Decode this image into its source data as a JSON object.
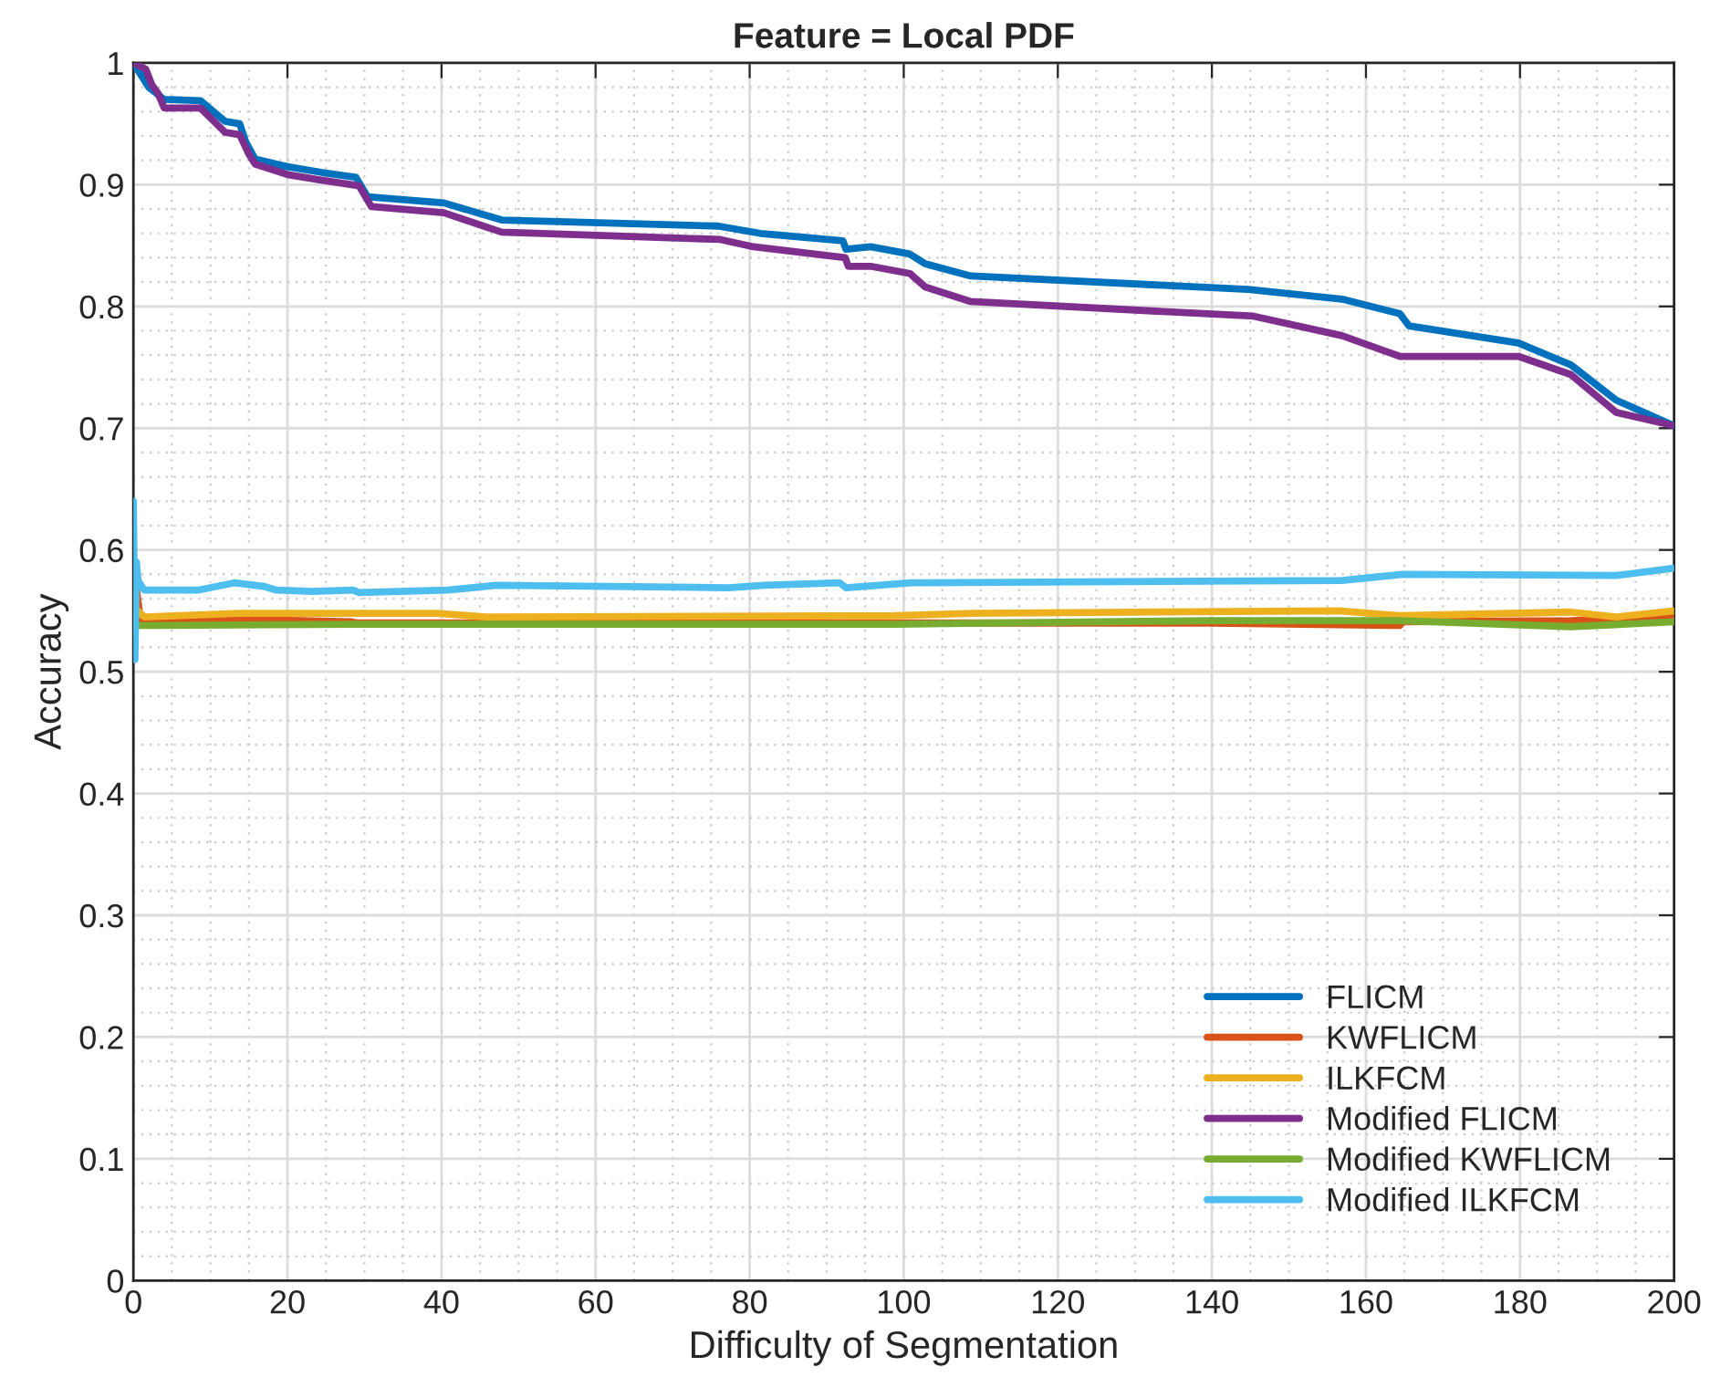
{
  "chart_data": {
    "type": "line",
    "title": "Feature = Local PDF",
    "xlabel": "Difficulty of Segmentation",
    "ylabel": "Accuracy",
    "xlim": [
      0,
      200
    ],
    "ylim": [
      0,
      1
    ],
    "xticks": [
      0,
      20,
      40,
      60,
      80,
      100,
      120,
      140,
      160,
      180,
      200
    ],
    "yticks": [
      0,
      0.1,
      0.2,
      0.3,
      0.4,
      0.5,
      0.6,
      0.7,
      0.8,
      0.9,
      1
    ],
    "grid": true,
    "legend": "bottom right",
    "marker": "none",
    "line_style": "solid",
    "series": [
      {
        "name": "FLICM",
        "color": "#0072bd",
        "x": [
          0,
          2,
          4,
          8.7,
          11.9,
          13.8,
          14.6,
          15.8,
          19.8,
          24.5,
          28.9,
          30.4,
          40.3,
          47.8,
          75.9,
          81.4,
          92.1,
          92.5,
          95.7,
          100.8,
          102.8,
          108.7,
          144.7,
          156.9,
          164.4,
          165.6,
          179.8,
          186.6,
          192.5,
          200
        ],
        "values": [
          1.0,
          0.98,
          0.97,
          0.969,
          0.952,
          0.95,
          0.935,
          0.921,
          0.915,
          0.91,
          0.906,
          0.89,
          0.885,
          0.871,
          0.866,
          0.86,
          0.854,
          0.847,
          0.849,
          0.843,
          0.835,
          0.825,
          0.814,
          0.806,
          0.794,
          0.784,
          0.77,
          0.752,
          0.723,
          0.702
        ]
      },
      {
        "name": "KWFLICM",
        "color": "#d95319",
        "x": [
          0,
          0.4,
          0.9,
          14,
          28.3,
          29,
          60,
          100,
          140,
          164.4,
          164.8,
          186.6,
          200
        ],
        "values": [
          0.54,
          0.568,
          0.543,
          0.543,
          0.541,
          0.54,
          0.54,
          0.54,
          0.54,
          0.538,
          0.541,
          0.542,
          0.545
        ]
      },
      {
        "name": "ILKFCM",
        "color": "#edb120",
        "x": [
          0,
          0.6,
          1.4,
          14,
          28.3,
          39.4,
          45.8,
          98.8,
          109,
          156.5,
          164.4,
          186.6,
          192.5,
          200
        ],
        "values": [
          0.54,
          0.55,
          0.545,
          0.548,
          0.548,
          0.548,
          0.545,
          0.546,
          0.548,
          0.55,
          0.546,
          0.549,
          0.545,
          0.55
        ]
      },
      {
        "name": "Modified FLICM",
        "color": "#7e2f8e",
        "x": [
          0,
          1.6,
          2.4,
          3.2,
          4,
          8.7,
          11.9,
          13.8,
          15,
          15.8,
          20.2,
          24.2,
          29.3,
          30.9,
          40.3,
          47.8,
          76.2,
          80.5,
          92.4,
          92.8,
          95.7,
          100.8,
          102.8,
          108.7,
          145.4,
          156.9,
          164.4,
          179.8,
          186.6,
          192.5,
          200
        ],
        "values": [
          1.0,
          0.995,
          0.982,
          0.975,
          0.963,
          0.963,
          0.943,
          0.941,
          0.925,
          0.917,
          0.908,
          0.904,
          0.899,
          0.882,
          0.877,
          0.861,
          0.855,
          0.849,
          0.84,
          0.833,
          0.833,
          0.827,
          0.816,
          0.804,
          0.792,
          0.776,
          0.759,
          0.759,
          0.744,
          0.713,
          0.702
        ]
      },
      {
        "name": "Modified KWFLICM",
        "color": "#77ac30",
        "x": [
          0,
          0.3,
          3.3,
          28.3,
          98.8,
          140,
          164.4,
          186.6,
          200
        ],
        "values": [
          0.535,
          0.538,
          0.538,
          0.539,
          0.539,
          0.542,
          0.542,
          0.537,
          0.541
        ]
      },
      {
        "name": "Modified ILKFCM",
        "color": "#4dbeee",
        "x": [
          0,
          0.2,
          0.4,
          0.6,
          1.4,
          8.4,
          13.1,
          17,
          18.6,
          23.3,
          28.5,
          29.3,
          40.8,
          47.1,
          77.2,
          81.9,
          91.7,
          92.5,
          101,
          156.9,
          164.8,
          192.5,
          200
        ],
        "values": [
          0.64,
          0.51,
          0.59,
          0.575,
          0.567,
          0.567,
          0.573,
          0.57,
          0.567,
          0.566,
          0.567,
          0.565,
          0.567,
          0.571,
          0.569,
          0.571,
          0.573,
          0.569,
          0.573,
          0.575,
          0.58,
          0.579,
          0.585
        ]
      }
    ]
  }
}
